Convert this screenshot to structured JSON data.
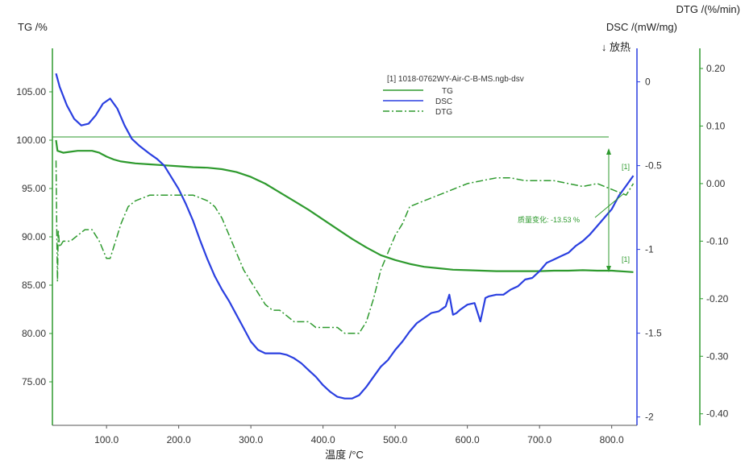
{
  "chart_data": {
    "type": "line",
    "title": "",
    "xlabel": "温度 /°C",
    "xlim": [
      25,
      835
    ],
    "x_ticks": [
      "100.0",
      "200.0",
      "300.0",
      "400.0",
      "500.0",
      "600.0",
      "700.0",
      "800.0"
    ],
    "x_tick_values": [
      100,
      200,
      300,
      400,
      500,
      600,
      700,
      800
    ],
    "y_left": {
      "label": "TG /%",
      "lim": [
        70.5,
        109.5
      ],
      "ticks": [
        "105.00",
        "100.00",
        "95.00",
        "90.00",
        "85.00",
        "80.00",
        "75.00"
      ],
      "tick_values": [
        105,
        100,
        95,
        90,
        85,
        80,
        75
      ]
    },
    "y_dsc": {
      "label": "DSC /(mW/mg)",
      "exo_label": "↓ 放热",
      "lim": [
        -2.05,
        0.2
      ],
      "ticks": [
        "0",
        "-0.5",
        "-1",
        "-1.5",
        "-2"
      ],
      "tick_values": [
        0,
        -0.5,
        -1,
        -1.5,
        -2
      ]
    },
    "y_dtg": {
      "label": "DTG /(%/min)",
      "lim": [
        -0.42,
        0.235
      ],
      "ticks": [
        "0.20",
        "0.10",
        "0.00",
        "-0.10",
        "-0.20",
        "-0.30",
        "-0.40"
      ],
      "tick_values": [
        0.2,
        0.1,
        0,
        -0.1,
        -0.2,
        -0.3,
        -0.4
      ]
    },
    "legend": {
      "file": "[1] 1018-0762WY-Air-C-B-MS.ngb-dsv",
      "items": [
        {
          "name": "TG",
          "color": "#2e9a2e",
          "style": "solid"
        },
        {
          "name": "DSC",
          "color": "#2a3fe0",
          "style": "solid"
        },
        {
          "name": "DTG",
          "color": "#2e9a2e",
          "style": "dashdot"
        }
      ]
    },
    "annotation": {
      "text": "质量变化: -13.53 %",
      "upper_marker": "[1]",
      "lower_marker": "[1]"
    },
    "series": [
      {
        "name": "TG",
        "axis": "left",
        "color": "#2e9a2e",
        "x": [
          30,
          32,
          40,
          50,
          60,
          70,
          80,
          90,
          100,
          110,
          120,
          130,
          140,
          160,
          180,
          200,
          220,
          240,
          260,
          280,
          300,
          320,
          340,
          360,
          380,
          400,
          420,
          440,
          460,
          480,
          500,
          520,
          540,
          560,
          580,
          600,
          620,
          640,
          660,
          680,
          700,
          720,
          740,
          760,
          780,
          800,
          820,
          830
        ],
        "y": [
          100,
          98.9,
          98.7,
          98.8,
          98.9,
          98.9,
          98.9,
          98.7,
          98.3,
          98.0,
          97.8,
          97.7,
          97.6,
          97.5,
          97.4,
          97.3,
          97.2,
          97.15,
          97.0,
          96.7,
          96.2,
          95.5,
          94.6,
          93.7,
          92.8,
          91.8,
          90.8,
          89.8,
          88.9,
          88.1,
          87.6,
          87.2,
          86.9,
          86.75,
          86.6,
          86.55,
          86.5,
          86.45,
          86.45,
          86.45,
          86.45,
          86.5,
          86.5,
          86.55,
          86.5,
          86.5,
          86.4,
          86.35
        ]
      },
      {
        "name": "DSC",
        "axis": "dsc",
        "color": "#2a3fe0",
        "x": [
          30,
          35,
          45,
          55,
          65,
          75,
          85,
          95,
          105,
          115,
          125,
          135,
          145,
          160,
          170,
          180,
          190,
          200,
          210,
          220,
          230,
          240,
          250,
          260,
          270,
          280,
          290,
          300,
          310,
          320,
          330,
          340,
          350,
          360,
          370,
          380,
          390,
          400,
          410,
          420,
          430,
          440,
          450,
          460,
          470,
          480,
          490,
          500,
          510,
          520,
          530,
          540,
          550,
          560,
          570,
          575,
          580,
          585,
          590,
          600,
          610,
          618,
          625,
          630,
          640,
          650,
          660,
          670,
          680,
          690,
          700,
          710,
          720,
          730,
          740,
          750,
          760,
          770,
          780,
          790,
          800,
          810,
          820,
          830
        ],
        "y": [
          0.05,
          -0.03,
          -0.14,
          -0.22,
          -0.26,
          -0.25,
          -0.2,
          -0.13,
          -0.1,
          -0.16,
          -0.26,
          -0.34,
          -0.38,
          -0.43,
          -0.46,
          -0.5,
          -0.57,
          -0.64,
          -0.73,
          -0.83,
          -0.95,
          -1.06,
          -1.16,
          -1.24,
          -1.31,
          -1.39,
          -1.47,
          -1.55,
          -1.6,
          -1.62,
          -1.62,
          -1.62,
          -1.63,
          -1.65,
          -1.68,
          -1.72,
          -1.76,
          -1.81,
          -1.85,
          -1.88,
          -1.89,
          -1.89,
          -1.87,
          -1.82,
          -1.76,
          -1.7,
          -1.66,
          -1.6,
          -1.55,
          -1.49,
          -1.44,
          -1.41,
          -1.38,
          -1.37,
          -1.34,
          -1.27,
          -1.39,
          -1.38,
          -1.36,
          -1.33,
          -1.32,
          -1.43,
          -1.29,
          -1.28,
          -1.27,
          -1.27,
          -1.24,
          -1.22,
          -1.18,
          -1.17,
          -1.13,
          -1.08,
          -1.06,
          -1.04,
          -1.02,
          -0.98,
          -0.95,
          -0.91,
          -0.86,
          -0.81,
          -0.76,
          -0.68,
          -0.62,
          -0.56
        ]
      },
      {
        "name": "DTG",
        "axis": "dtg",
        "color": "#2e9a2e",
        "x": [
          30,
          31,
          32,
          33,
          35,
          40,
          50,
          60,
          70,
          80,
          90,
          100,
          105,
          110,
          120,
          130,
          140,
          150,
          160,
          170,
          180,
          190,
          200,
          210,
          220,
          230,
          240,
          250,
          260,
          270,
          280,
          290,
          300,
          310,
          320,
          330,
          340,
          350,
          360,
          370,
          380,
          390,
          400,
          410,
          420,
          430,
          440,
          450,
          460,
          470,
          480,
          490,
          500,
          510,
          520,
          540,
          560,
          580,
          600,
          620,
          640,
          660,
          680,
          700,
          720,
          740,
          760,
          780,
          800,
          820,
          830
        ],
        "y": [
          0.04,
          -0.08,
          -0.17,
          -0.08,
          -0.11,
          -0.1,
          -0.1,
          -0.09,
          -0.08,
          -0.08,
          -0.1,
          -0.13,
          -0.13,
          -0.11,
          -0.07,
          -0.04,
          -0.03,
          -0.025,
          -0.02,
          -0.02,
          -0.02,
          -0.02,
          -0.02,
          -0.02,
          -0.02,
          -0.025,
          -0.03,
          -0.04,
          -0.06,
          -0.09,
          -0.12,
          -0.15,
          -0.17,
          -0.19,
          -0.21,
          -0.22,
          -0.22,
          -0.23,
          -0.24,
          -0.24,
          -0.24,
          -0.25,
          -0.25,
          -0.25,
          -0.25,
          -0.26,
          -0.26,
          -0.26,
          -0.24,
          -0.2,
          -0.15,
          -0.12,
          -0.09,
          -0.07,
          -0.04,
          -0.03,
          -0.02,
          -0.01,
          0,
          0.005,
          0.01,
          0.01,
          0.005,
          0.005,
          0.005,
          0,
          -0.005,
          0,
          -0.01,
          -0.02,
          0
        ]
      }
    ]
  }
}
